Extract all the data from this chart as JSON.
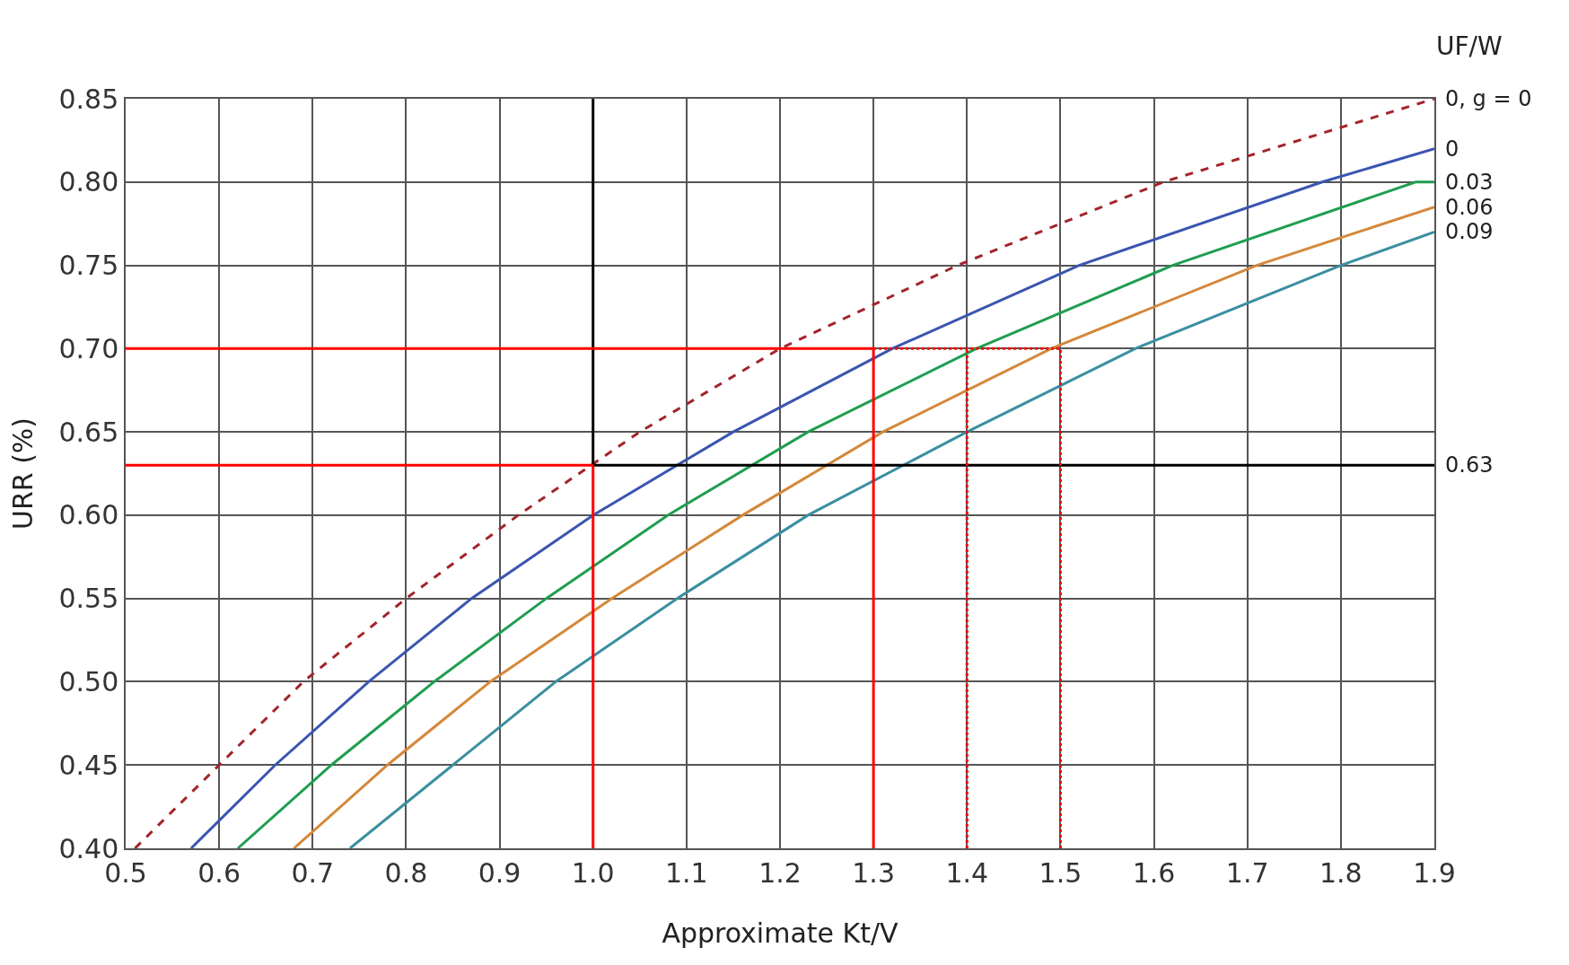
{
  "chart_data": {
    "type": "line",
    "xlabel": "Approximate Kt/V",
    "ylabel": "URR (%)",
    "legend_title": "UF/W",
    "xlim": [
      0.5,
      1.9
    ],
    "ylim": [
      0.4,
      0.85
    ],
    "xticks": [
      {
        "value": 0.5,
        "label": "0.5"
      },
      {
        "value": 0.6,
        "label": "0.6"
      },
      {
        "value": 0.7,
        "label": "0.7"
      },
      {
        "value": 0.8,
        "label": "0.8"
      },
      {
        "value": 0.9,
        "label": "0.9"
      },
      {
        "value": 1.0,
        "label": "1.0"
      },
      {
        "value": 1.1,
        "label": "1.1"
      },
      {
        "value": 1.2,
        "label": "1.2"
      },
      {
        "value": 1.3,
        "label": "1.3"
      },
      {
        "value": 1.4,
        "label": "1.4"
      },
      {
        "value": 1.5,
        "label": "1.5"
      },
      {
        "value": 1.6,
        "label": "1.6"
      },
      {
        "value": 1.7,
        "label": "1.7"
      },
      {
        "value": 1.8,
        "label": "1.8"
      },
      {
        "value": 1.9,
        "label": "1.9"
      }
    ],
    "yticks": [
      {
        "value": 0.4,
        "label": "0.40"
      },
      {
        "value": 0.45,
        "label": "0.45"
      },
      {
        "value": 0.5,
        "label": "0.50"
      },
      {
        "value": 0.55,
        "label": "0.55"
      },
      {
        "value": 0.6,
        "label": "0.60"
      },
      {
        "value": 0.65,
        "label": "0.65"
      },
      {
        "value": 0.7,
        "label": "0.70"
      },
      {
        "value": 0.75,
        "label": "0.75"
      },
      {
        "value": 0.8,
        "label": "0.80"
      },
      {
        "value": 0.85,
        "label": "0.85"
      }
    ],
    "grid": true,
    "legend": false,
    "marker": "none",
    "series": [
      {
        "name": "0, g = 0",
        "color": "#a3242b",
        "line_style": "dashed",
        "x": [
          0.51,
          0.6,
          0.69,
          0.8,
          0.92,
          1.05,
          1.2,
          1.39,
          1.61,
          1.9
        ],
        "values": [
          0.4,
          0.45,
          0.5,
          0.55,
          0.6,
          0.65,
          0.7,
          0.75,
          0.8,
          0.85
        ]
      },
      {
        "name": "0",
        "color": "#3a55b0",
        "line_style": "solid",
        "x": [
          0.57,
          0.66,
          0.76,
          0.87,
          1.0,
          1.15,
          1.32,
          1.52,
          1.78,
          1.9
        ],
        "values": [
          0.4,
          0.45,
          0.5,
          0.55,
          0.6,
          0.65,
          0.7,
          0.75,
          0.8,
          0.82
        ]
      },
      {
        "name": "0.03",
        "color": "#1f9e4f",
        "line_style": "solid",
        "x": [
          0.62,
          0.72,
          0.83,
          0.95,
          1.08,
          1.23,
          1.41,
          1.62,
          1.88,
          1.9
        ],
        "values": [
          0.4,
          0.45,
          0.5,
          0.55,
          0.6,
          0.65,
          0.7,
          0.75,
          0.8,
          0.8
        ]
      },
      {
        "name": "0.06",
        "color": "#d4883a",
        "line_style": "solid",
        "x": [
          0.68,
          0.78,
          0.89,
          1.02,
          1.16,
          1.31,
          1.49,
          1.71,
          1.9
        ],
        "values": [
          0.4,
          0.45,
          0.5,
          0.55,
          0.6,
          0.65,
          0.7,
          0.75,
          0.785
        ]
      },
      {
        "name": "0.09",
        "color": "#3a8fa0",
        "line_style": "solid",
        "x": [
          0.74,
          0.85,
          0.96,
          1.09,
          1.23,
          1.4,
          1.58,
          1.8,
          1.9
        ],
        "values": [
          0.4,
          0.45,
          0.5,
          0.55,
          0.6,
          0.65,
          0.7,
          0.75,
          0.77
        ]
      },
      {
        "color": "#000000",
        "line_style": "solid",
        "x": [
          1.0,
          1.0
        ],
        "values": [
          0.63,
          0.85
        ]
      },
      {
        "color": "#000000",
        "line_style": "solid",
        "x": [
          1.0,
          1.9
        ],
        "values": [
          0.63,
          0.63
        ]
      },
      {
        "color": "#ff0000",
        "line_style": "solid",
        "x": [
          0.5,
          1.3
        ],
        "values": [
          0.7,
          0.7
        ]
      },
      {
        "color": "#ff0000",
        "line_style": "solid",
        "x": [
          0.5,
          1.0
        ],
        "values": [
          0.63,
          0.63
        ]
      },
      {
        "color": "#ff0000",
        "line_style": "solid",
        "x": [
          1.0,
          1.0
        ],
        "values": [
          0.4,
          0.63
        ]
      },
      {
        "color": "#ff0000",
        "line_style": "solid",
        "x": [
          1.3,
          1.3
        ],
        "values": [
          0.4,
          0.7
        ]
      },
      {
        "color": "#ff0000",
        "line_style": "dotted",
        "x": [
          1.3,
          1.5
        ],
        "values": [
          0.7,
          0.7
        ]
      },
      {
        "color": "#ff0000",
        "line_style": "dotted",
        "x": [
          1.4,
          1.4
        ],
        "values": [
          0.4,
          0.7
        ]
      },
      {
        "color": "#ff0000",
        "line_style": "dotted",
        "x": [
          1.5,
          1.5
        ],
        "values": [
          0.4,
          0.7
        ]
      }
    ],
    "annotations": [
      {
        "text": "0.63",
        "x": 1.9,
        "y": 0.63
      }
    ]
  }
}
